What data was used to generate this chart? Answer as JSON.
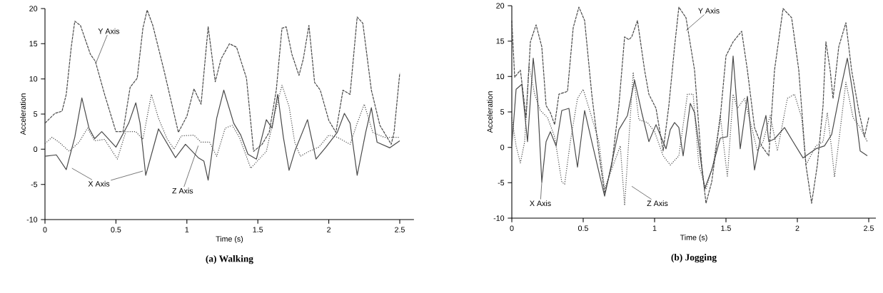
{
  "chart_data": [
    {
      "type": "line",
      "title": "(a) Walking",
      "xlabel": "Time (s)",
      "ylabel": "Acceleration",
      "xlim": [
        0,
        2.6
      ],
      "ylim": [
        -10,
        20
      ],
      "xticks": [
        0,
        0.5,
        1,
        1.5,
        2,
        2.5
      ],
      "yticks": [
        -10,
        -5,
        0,
        5,
        10,
        15,
        20
      ],
      "series": [
        {
          "name": "X Axis",
          "color": "#4a4a4a",
          "line_style": "solid",
          "x": [
            0,
            0.08,
            0.15,
            0.21,
            0.26,
            0.31,
            0.35,
            0.4,
            0.5,
            0.59,
            0.64,
            0.67,
            0.71,
            0.8,
            0.92,
            0.99,
            1.08,
            1.12,
            1.15,
            1.21,
            1.26,
            1.33,
            1.38,
            1.43,
            1.49,
            1.56,
            1.6,
            1.64,
            1.68,
            1.72,
            1.76,
            1.85,
            1.91,
            1.98,
            2.06,
            2.11,
            2.15,
            2.2,
            2.26,
            2.3,
            2.34,
            2.43,
            2.5
          ],
          "values": [
            -1.0,
            -0.8,
            -2.9,
            1.7,
            7.3,
            3.0,
            1.5,
            2.5,
            0.3,
            3.7,
            6.6,
            3.7,
            -3.7,
            2.9,
            -1.2,
            0.7,
            -1.2,
            -1.7,
            -4.4,
            4.4,
            8.4,
            3.7,
            2.0,
            -0.7,
            -1.4,
            4.2,
            3.0,
            7.8,
            1.7,
            -3.0,
            -0.3,
            4.2,
            -1.4,
            0.3,
            2.4,
            5.1,
            3.7,
            -3.7,
            2.4,
            5.9,
            1.0,
            0.2,
            1.2
          ]
        },
        {
          "name": "Y Axis",
          "color": "#4a4a4a",
          "line_style": "dashed",
          "x": [
            0,
            0.07,
            0.12,
            0.15,
            0.185,
            0.21,
            0.25,
            0.32,
            0.355,
            0.42,
            0.5,
            0.55,
            0.6,
            0.65,
            0.69,
            0.72,
            0.76,
            0.84,
            0.94,
            1.0,
            1.05,
            1.1,
            1.15,
            1.2,
            1.24,
            1.3,
            1.35,
            1.42,
            1.47,
            1.53,
            1.58,
            1.63,
            1.67,
            1.7,
            1.74,
            1.79,
            1.82,
            1.86,
            1.9,
            1.94,
            2.0,
            2.05,
            2.1,
            2.15,
            2.2,
            2.24,
            2.3,
            2.36,
            2.44,
            2.46,
            2.5
          ],
          "values": [
            3.7,
            5.1,
            5.4,
            7.8,
            14.5,
            18.2,
            17.6,
            13.5,
            12.5,
            7.8,
            2.5,
            2.5,
            8.8,
            10.1,
            17.2,
            19.8,
            17.6,
            11.1,
            2.4,
            4.7,
            8.6,
            6.4,
            17.4,
            9.6,
            12.8,
            15.0,
            14.5,
            10.1,
            -0.3,
            0.7,
            2.4,
            8.4,
            17.2,
            17.4,
            13.5,
            10.5,
            12.8,
            17.6,
            9.5,
            8.4,
            4.1,
            2.4,
            8.4,
            7.8,
            18.8,
            17.9,
            8.4,
            3.4,
            0.7,
            2.4,
            10.8
          ]
        },
        {
          "name": "Z Axis",
          "color": "#4a4a4a",
          "line_style": "dotted",
          "x": [
            0,
            0.05,
            0.1,
            0.17,
            0.24,
            0.3,
            0.35,
            0.42,
            0.51,
            0.57,
            0.64,
            0.69,
            0.75,
            0.8,
            0.86,
            0.91,
            0.96,
            1.05,
            1.1,
            1.16,
            1.21,
            1.27,
            1.32,
            1.37,
            1.45,
            1.56,
            1.62,
            1.67,
            1.72,
            1.76,
            1.8,
            1.86,
            1.93,
            2.0,
            2.06,
            2.15,
            2.2,
            2.25,
            2.31,
            2.39,
            2.5
          ],
          "values": [
            0.8,
            1.7,
            1.0,
            -0.3,
            1.0,
            3.0,
            1.2,
            1.4,
            -1.4,
            2.5,
            2.5,
            1.4,
            7.8,
            4.4,
            1.5,
            0.0,
            1.9,
            2.0,
            1.0,
            1.0,
            -1.0,
            3.0,
            3.4,
            1.7,
            -2.7,
            -0.3,
            5.1,
            9.1,
            6.1,
            1.0,
            -1.0,
            -0.3,
            0.3,
            2.0,
            1.7,
            0.7,
            3.7,
            6.4,
            2.4,
            1.7,
            1.7
          ]
        }
      ]
    },
    {
      "type": "line",
      "title": "(b) Jogging",
      "xlabel": "Time (s)",
      "ylabel": "Acceleration",
      "xlim": [
        0,
        2.55
      ],
      "ylim": [
        -10,
        20
      ],
      "xticks": [
        0,
        0.5,
        1,
        1.5,
        2,
        2.5
      ],
      "yticks": [
        -10,
        -5,
        0,
        5,
        10,
        15,
        20
      ],
      "series": [
        {
          "name": "X Axis",
          "color": "#4a4a4a",
          "line_style": "solid",
          "x": [
            0,
            0.03,
            0.07,
            0.11,
            0.15,
            0.18,
            0.21,
            0.24,
            0.27,
            0.31,
            0.35,
            0.4,
            0.46,
            0.51,
            0.56,
            0.65,
            0.75,
            0.81,
            0.86,
            0.91,
            0.96,
            1.01,
            1.08,
            1.11,
            1.14,
            1.17,
            1.2,
            1.25,
            1.28,
            1.35,
            1.4,
            1.46,
            1.51,
            1.55,
            1.6,
            1.65,
            1.7,
            1.75,
            1.78,
            1.8,
            1.84,
            1.91,
            1.97,
            2.04,
            2.13,
            2.19,
            2.24,
            2.3,
            2.35,
            2.39,
            2.44,
            2.49
          ],
          "values": [
            0.2,
            8.2,
            8.9,
            0.8,
            12.6,
            6.9,
            -4.9,
            0.8,
            2.2,
            0.2,
            5.2,
            5.5,
            -2.8,
            5.2,
            0.8,
            -6.9,
            2.5,
            4.5,
            9.5,
            4.9,
            0.8,
            3.2,
            -0.2,
            2.5,
            3.5,
            2.8,
            -1.2,
            6.2,
            4.9,
            -5.9,
            -3.2,
            1.3,
            1.5,
            12.9,
            -0.2,
            7.2,
            -3.2,
            2.2,
            4.5,
            0.8,
            1.2,
            2.8,
            0.8,
            -1.5,
            -0.2,
            0.2,
            1.8,
            7.9,
            12.6,
            7.5,
            -0.5,
            -1.2
          ]
        },
        {
          "name": "Y Axis",
          "color": "#4a4a4a",
          "line_style": "dashed",
          "x": [
            0,
            0.02,
            0.06,
            0.1,
            0.13,
            0.17,
            0.21,
            0.24,
            0.27,
            0.3,
            0.33,
            0.39,
            0.43,
            0.47,
            0.51,
            0.56,
            0.61,
            0.65,
            0.7,
            0.75,
            0.79,
            0.82,
            0.84,
            0.88,
            0.93,
            0.96,
            1.01,
            1.06,
            1.1,
            1.14,
            1.17,
            1.22,
            1.28,
            1.33,
            1.36,
            1.4,
            1.46,
            1.5,
            1.55,
            1.61,
            1.65,
            1.7,
            1.75,
            1.8,
            1.84,
            1.9,
            1.96,
            2.01,
            2.06,
            2.1,
            2.14,
            2.18,
            2.2,
            2.23,
            2.25,
            2.29,
            2.34,
            2.38,
            2.43,
            2.47,
            2.5
          ],
          "values": [
            17.9,
            9.9,
            10.9,
            4.2,
            14.9,
            17.3,
            14.2,
            5.9,
            4.9,
            3.2,
            7.5,
            7.9,
            16.9,
            19.8,
            17.9,
            7.5,
            -0.8,
            -6.5,
            -2.5,
            5.9,
            15.6,
            15.2,
            15.6,
            17.9,
            10.9,
            7.5,
            5.5,
            -0.5,
            5.9,
            14.2,
            19.8,
            18.3,
            10.9,
            -2.5,
            -7.9,
            -4.9,
            4.2,
            12.9,
            14.9,
            16.4,
            10.9,
            2.8,
            0.2,
            -1.2,
            10.9,
            19.6,
            18.3,
            10.9,
            -2.5,
            -7.9,
            -2.5,
            5.9,
            14.9,
            10.9,
            6.9,
            14.2,
            17.6,
            10.9,
            5.2,
            1.5,
            4.2
          ]
        },
        {
          "name": "Z Axis",
          "color": "#4a4a4a",
          "line_style": "dotted",
          "x": [
            0,
            0.03,
            0.06,
            0.09,
            0.12,
            0.16,
            0.2,
            0.25,
            0.3,
            0.35,
            0.37,
            0.41,
            0.46,
            0.5,
            0.55,
            0.61,
            0.65,
            0.71,
            0.76,
            0.79,
            0.85,
            0.89,
            0.95,
            1.0,
            1.06,
            1.11,
            1.17,
            1.23,
            1.27,
            1.31,
            1.36,
            1.41,
            1.46,
            1.51,
            1.55,
            1.58,
            1.63,
            1.68,
            1.72,
            1.76,
            1.81,
            1.86,
            1.93,
            1.98,
            2.03,
            2.06,
            2.13,
            2.18,
            2.21,
            2.24,
            2.26,
            2.29,
            2.34,
            2.39,
            2.44,
            2.49
          ],
          "values": [
            4.2,
            0.2,
            -2.2,
            0.8,
            11.6,
            7.5,
            5.2,
            4.2,
            1.5,
            -4.9,
            -5.2,
            0.8,
            6.9,
            8.2,
            4.9,
            0.8,
            -5.9,
            -2.5,
            0.2,
            -8.2,
            10.6,
            3.9,
            3.5,
            2.2,
            -1.2,
            -2.5,
            -1.2,
            7.5,
            7.5,
            -2.5,
            -5.9,
            -2.5,
            4.5,
            -4.2,
            7.5,
            5.5,
            6.9,
            2.8,
            -0.5,
            0.8,
            4.5,
            -0.5,
            6.9,
            7.5,
            4.2,
            -2.5,
            0.2,
            0.8,
            4.9,
            -0.2,
            -4.2,
            0.8,
            9.2,
            4.2,
            2.8,
            0.8
          ]
        }
      ]
    }
  ]
}
